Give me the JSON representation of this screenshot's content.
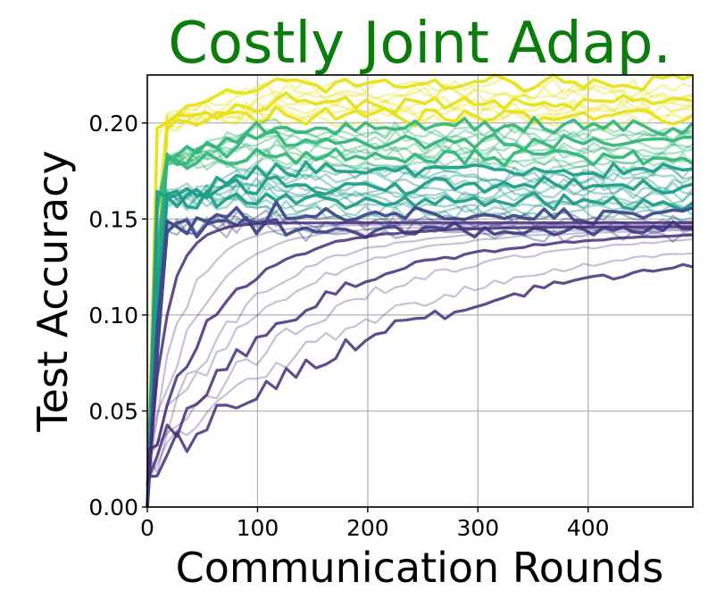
{
  "chart_data": {
    "type": "line",
    "title": "Costly Joint Adap.",
    "xlabel": "Communication Rounds",
    "ylabel": "Test Accuracy",
    "xlim": [
      0,
      495
    ],
    "ylim": [
      0,
      0.225
    ],
    "xticks": [
      0,
      100,
      200,
      300,
      400
    ],
    "xtick_labels": [
      "0",
      "100",
      "200",
      "300",
      "400"
    ],
    "yticks": [
      0.0,
      0.05,
      0.1,
      0.15,
      0.2
    ],
    "ytick_labels": [
      "0.00",
      "0.05",
      "0.10",
      "0.15",
      "0.20"
    ],
    "grid": true,
    "legend": "none",
    "title_color": "#0a7d0a",
    "colormap": "viridis",
    "series_groups": [
      {
        "count": 10,
        "final": [
          0.223,
          0.221,
          0.218,
          0.216,
          0.213,
          0.211,
          0.209,
          0.207,
          0.205,
          0.203
        ],
        "early_peak": 0.2,
        "color": "#e8e11a"
      },
      {
        "count": 12,
        "final": [
          0.201,
          0.199,
          0.197,
          0.195,
          0.193,
          0.191,
          0.189,
          0.187,
          0.185,
          0.183,
          0.181,
          0.179
        ],
        "early_peak": 0.18,
        "color": "#35b779"
      },
      {
        "count": 12,
        "final": [
          0.178,
          0.176,
          0.174,
          0.172,
          0.17,
          0.168,
          0.166,
          0.164,
          0.162,
          0.16,
          0.158,
          0.156
        ],
        "early_peak": 0.16,
        "color": "#1f9e89"
      },
      {
        "count": 6,
        "final": [
          0.155,
          0.153,
          0.151,
          0.149,
          0.147,
          0.145
        ],
        "early_peak": 0.145,
        "color": "#3e4a89"
      },
      {
        "count": 10,
        "final": [
          0.148,
          0.147,
          0.146,
          0.146,
          0.145,
          0.145,
          0.144,
          0.144,
          0.144,
          0.143
        ],
        "rise_round": [
          20,
          35,
          50,
          70,
          90,
          110,
          140,
          170,
          230,
          280
        ],
        "color": "#472d7b"
      }
    ]
  }
}
